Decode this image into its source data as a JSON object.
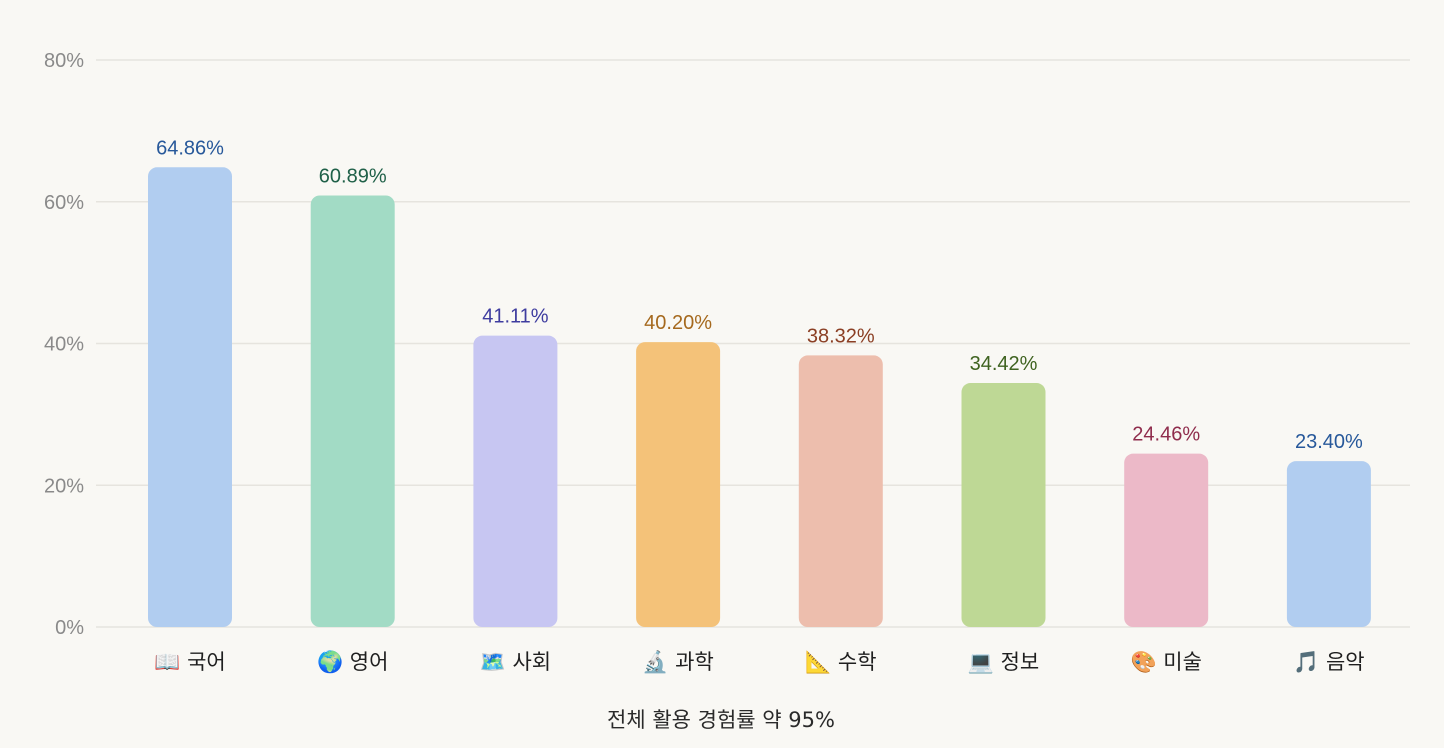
{
  "chart_data": {
    "type": "bar",
    "categories": [
      "📖 국어",
      "🌍 영어",
      "🗺️ 사회",
      "🔬 과학",
      "📐 수학",
      "💻 정보",
      "🎨 미술",
      "🎵 음악"
    ],
    "values": [
      64.86,
      60.89,
      41.11,
      40.2,
      38.32,
      34.42,
      24.46,
      23.4
    ],
    "value_labels": [
      "64.86%",
      "60.89%",
      "41.11%",
      "40.20%",
      "38.32%",
      "34.42%",
      "24.46%",
      "23.40%"
    ],
    "ylim": [
      0,
      80
    ],
    "yticks": [
      0,
      20,
      40,
      60,
      80
    ],
    "ytick_labels": [
      "0%",
      "20%",
      "40%",
      "60%",
      "80%"
    ],
    "grid": true,
    "legend": "none",
    "caption": "전체 활용 경험률 약 95%",
    "bar_colors": [
      "#b1cdf0",
      "#a2dbc5",
      "#c7c6f2",
      "#f4c279",
      "#edbead",
      "#bed895",
      "#ecb9c8",
      "#b1cdf0"
    ],
    "label_colors": [
      "#27589a",
      "#1f6048",
      "#3e3c9f",
      "#a5691e",
      "#8b3f24",
      "#3f6320",
      "#8f2c4c",
      "#27589a"
    ]
  }
}
